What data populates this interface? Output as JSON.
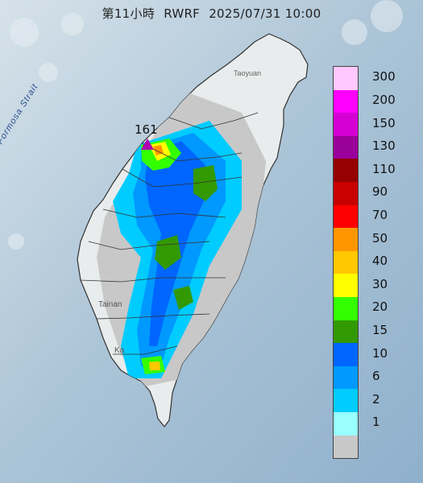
{
  "title": {
    "hour": "第11小時",
    "model": "RWRF",
    "datetime": "2025/07/31 10:00"
  },
  "map_labels": {
    "strait": "Formosa Strait",
    "taoyuan": "Taoyuan",
    "tainan": "Tainan",
    "kaohsiung": "Ka"
  },
  "station": {
    "value": "161",
    "marker_color": "#b000b0"
  },
  "legend": [
    {
      "label": "300",
      "color": "#ffc8ff"
    },
    {
      "label": "200",
      "color": "#ff00ff"
    },
    {
      "label": "150",
      "color": "#d400d4"
    },
    {
      "label": "130",
      "color": "#9a009a"
    },
    {
      "label": "110",
      "color": "#960000"
    },
    {
      "label": "90",
      "color": "#c80000"
    },
    {
      "label": "70",
      "color": "#ff0000"
    },
    {
      "label": "50",
      "color": "#ff9600"
    },
    {
      "label": "40",
      "color": "#ffc800"
    },
    {
      "label": "30",
      "color": "#ffff00"
    },
    {
      "label": "20",
      "color": "#33ff00"
    },
    {
      "label": "15",
      "color": "#339900"
    },
    {
      "label": "10",
      "color": "#0066ff"
    },
    {
      "label": "6",
      "color": "#0099ff"
    },
    {
      "label": "2",
      "color": "#00ccff"
    },
    {
      "label": "1",
      "color": "#99ffff"
    },
    {
      "label": "",
      "color": "#c8c8c8"
    }
  ]
}
